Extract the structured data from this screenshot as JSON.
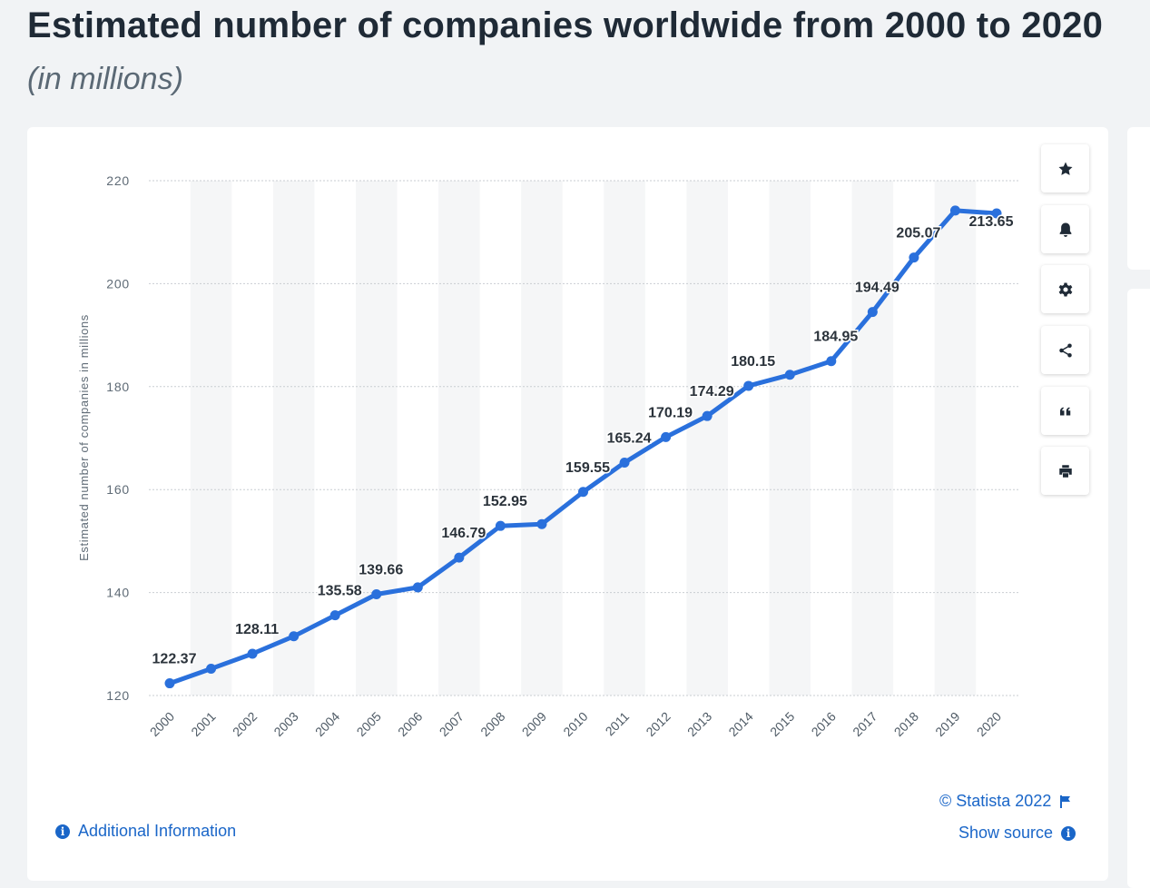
{
  "header": {
    "title": "Estimated number of companies worldwide from 2000 to 2020",
    "subtitle": "(in millions)"
  },
  "toolbar": {
    "buttons": [
      {
        "name": "favorite-button",
        "icon": "star-icon"
      },
      {
        "name": "notification-button",
        "icon": "bell-icon"
      },
      {
        "name": "settings-button",
        "icon": "gear-icon"
      },
      {
        "name": "share-button",
        "icon": "share-icon"
      },
      {
        "name": "cite-button",
        "icon": "quote-icon"
      },
      {
        "name": "print-button",
        "icon": "printer-icon"
      }
    ]
  },
  "footer": {
    "copyright": "© Statista 2022",
    "show_source": "Show source",
    "additional_info": "Additional Information"
  },
  "colors": {
    "line": "#2a70dc",
    "link": "#1a66c8",
    "grid": "#c9cdd2",
    "band": "#f5f6f7"
  },
  "chart_data": {
    "type": "line",
    "title": "Estimated number of companies worldwide from 2000 to 2020",
    "subtitle": "(in millions)",
    "xlabel": "",
    "ylabel": "Estimated number of companies in millions",
    "ylim": [
      120,
      220
    ],
    "yticks": [
      120,
      140,
      160,
      180,
      200,
      220
    ],
    "grid": true,
    "categories": [
      "2000",
      "2001",
      "2002",
      "2003",
      "2004",
      "2005",
      "2006",
      "2007",
      "2008",
      "2009",
      "2010",
      "2011",
      "2012",
      "2013",
      "2014",
      "2015",
      "2016",
      "2017",
      "2018",
      "2019",
      "2020"
    ],
    "series": [
      {
        "values": [
          122.37,
          125.2,
          128.11,
          131.5,
          135.58,
          139.66,
          141.0,
          146.79,
          152.95,
          153.3,
          159.55,
          165.24,
          170.19,
          174.29,
          180.15,
          182.3,
          184.95,
          194.49,
          205.07,
          214.2,
          213.65
        ],
        "labels": [
          "122.37",
          "",
          "128.11",
          "",
          "135.58",
          "139.66",
          "",
          "146.79",
          "152.95",
          "",
          "159.55",
          "165.24",
          "170.19",
          "174.29",
          "180.15",
          "",
          "184.95",
          "194.49",
          "205.07",
          "",
          "213.65"
        ]
      }
    ]
  }
}
